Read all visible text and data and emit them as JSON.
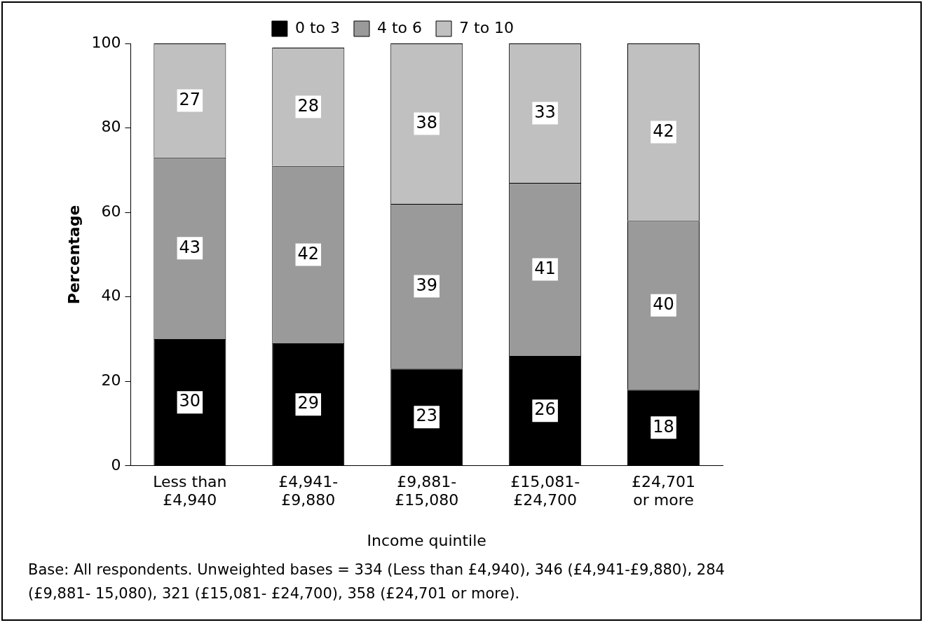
{
  "chart_data": {
    "type": "bar",
    "stacked": true,
    "xlabel": "Income quintile",
    "ylabel": "Percentage",
    "categories": [
      "Less than £4,940",
      "£4,941-£9,880",
      "£9,881-£15,080",
      "£15,081-£24,700",
      "£24,701 or more"
    ],
    "series": [
      {
        "name": "0 to 3",
        "color": "#000000",
        "values": [
          30,
          29,
          23,
          26,
          18
        ]
      },
      {
        "name": "4 to 6",
        "color": "#9a9a9a",
        "values": [
          43,
          42,
          39,
          41,
          40
        ]
      },
      {
        "name": "7 to 10",
        "color": "#c0c0c0",
        "values": [
          27,
          28,
          38,
          33,
          42
        ]
      }
    ],
    "ylim": [
      0,
      100
    ],
    "yticks": [
      0,
      20,
      40,
      60,
      80,
      100
    ],
    "grid": false,
    "legend": "top",
    "data_labels": true,
    "annotations": [
      "Base: All respondents. Unweighted bases = 334 (Less than £4,940), 346 (£4,941-£9,880), 284 (£9,881- 15,080), 321 (£15,081- £24,700), 358 (£24,701 or more)."
    ]
  }
}
